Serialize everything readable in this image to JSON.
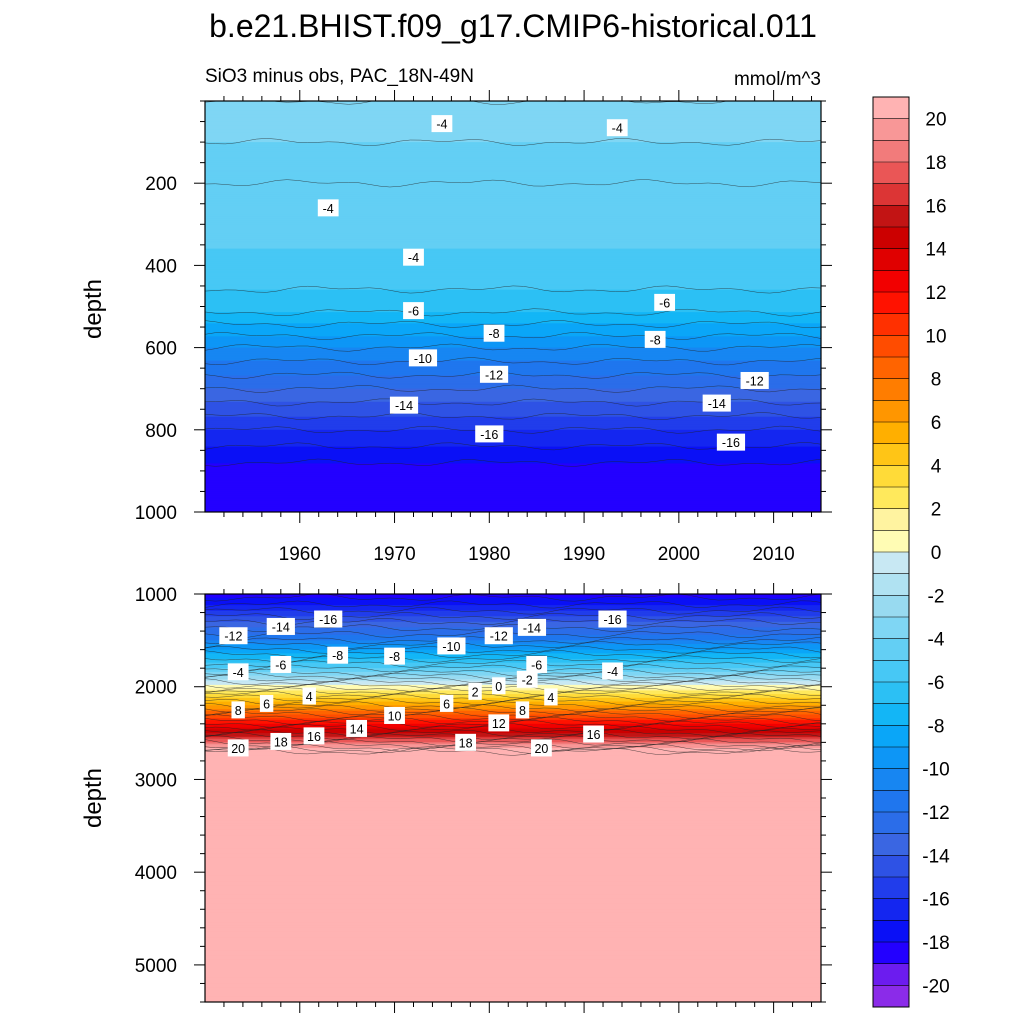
{
  "figure_title": "b.e21.BHIST.f09_g17.CMIP6-historical.011",
  "panel_left_title": "SiO3 minus obs, PAC_18N-49N",
  "panel_right_title": "mmol/m^3",
  "chart_data": [
    {
      "type": "heatmap",
      "panel": "upper",
      "ylabel": "depth",
      "xlim": [
        1950,
        2015
      ],
      "ylim": [
        0,
        1000
      ],
      "y_reversed": true,
      "x_ticks": [
        1960,
        1970,
        1980,
        1990,
        2000,
        2010
      ],
      "y_ticks": [
        200,
        400,
        600,
        800,
        1000
      ],
      "contour_interval": 1,
      "profile": [
        {
          "depth": 0,
          "value": -3
        },
        {
          "depth": 100,
          "value": -4
        },
        {
          "depth": 200,
          "value": -5
        },
        {
          "depth": 300,
          "value": -4.6
        },
        {
          "depth": 400,
          "value": -5.3
        },
        {
          "depth": 500,
          "value": -6.5
        },
        {
          "depth": 600,
          "value": -10
        },
        {
          "depth": 700,
          "value": -13
        },
        {
          "depth": 800,
          "value": -16
        },
        {
          "depth": 880,
          "value": -18
        },
        {
          "depth": 1000,
          "value": -18.6
        }
      ],
      "contour_labels": [
        {
          "x": 1975,
          "depth": 55,
          "text": "-4"
        },
        {
          "x": 1993.5,
          "depth": 65,
          "text": "-4"
        },
        {
          "x": 1963,
          "depth": 260,
          "text": "-4"
        },
        {
          "x": 1972,
          "depth": 380,
          "text": "-4"
        },
        {
          "x": 1972,
          "depth": 510,
          "text": "-6"
        },
        {
          "x": 1998.5,
          "depth": 490,
          "text": "-6"
        },
        {
          "x": 1980.5,
          "depth": 565,
          "text": "-8"
        },
        {
          "x": 1997.5,
          "depth": 580,
          "text": "-8"
        },
        {
          "x": 1973,
          "depth": 625,
          "text": "-10"
        },
        {
          "x": 1980.5,
          "depth": 665,
          "text": "-12"
        },
        {
          "x": 2008,
          "depth": 680,
          "text": "-12"
        },
        {
          "x": 1971,
          "depth": 740,
          "text": "-14"
        },
        {
          "x": 2004,
          "depth": 735,
          "text": "-14"
        },
        {
          "x": 1980,
          "depth": 810,
          "text": "-16"
        },
        {
          "x": 2005.5,
          "depth": 830,
          "text": "-16"
        }
      ]
    },
    {
      "type": "heatmap",
      "panel": "lower",
      "ylabel": "depth",
      "xlim": [
        1950,
        2015
      ],
      "ylim": [
        1000,
        5400
      ],
      "y_reversed": true,
      "y_ticks": [
        1000,
        2000,
        3000,
        4000,
        5000
      ],
      "contour_interval": 1,
      "profile": [
        {
          "depth": 1000,
          "value": -18.5
        },
        {
          "depth": 1150,
          "value": -16.5
        },
        {
          "depth": 1300,
          "value": -14
        },
        {
          "depth": 1500,
          "value": -11
        },
        {
          "depth": 1700,
          "value": -7
        },
        {
          "depth": 1850,
          "value": -4
        },
        {
          "depth": 1950,
          "value": -1
        },
        {
          "depth": 2000,
          "value": 0.5
        },
        {
          "depth": 2100,
          "value": 3.5
        },
        {
          "depth": 2200,
          "value": 6
        },
        {
          "depth": 2300,
          "value": 9
        },
        {
          "depth": 2400,
          "value": 12
        },
        {
          "depth": 2500,
          "value": 15
        },
        {
          "depth": 2600,
          "value": 18
        },
        {
          "depth": 2660,
          "value": 20
        },
        {
          "depth": 2700,
          "value": 22
        },
        {
          "depth": 5400,
          "value": 22
        }
      ],
      "contour_labels": [
        {
          "x": 1953,
          "depth": 1450,
          "text": "-12"
        },
        {
          "x": 1958,
          "depth": 1350,
          "text": "-14"
        },
        {
          "x": 1963,
          "depth": 1270,
          "text": "-16"
        },
        {
          "x": 1976,
          "depth": 1560,
          "text": "-10"
        },
        {
          "x": 1981,
          "depth": 1450,
          "text": "-12"
        },
        {
          "x": 1984.5,
          "depth": 1360,
          "text": "-14"
        },
        {
          "x": 1993,
          "depth": 1270,
          "text": "-16"
        },
        {
          "x": 1953.5,
          "depth": 1840,
          "text": "-4"
        },
        {
          "x": 1958,
          "depth": 1760,
          "text": "-6"
        },
        {
          "x": 1964,
          "depth": 1660,
          "text": "-8"
        },
        {
          "x": 1970,
          "depth": 1670,
          "text": "-8"
        },
        {
          "x": 1985,
          "depth": 1760,
          "text": "-6"
        },
        {
          "x": 1993,
          "depth": 1830,
          "text": "-4"
        },
        {
          "x": 1978.5,
          "depth": 2050,
          "text": "2"
        },
        {
          "x": 1981,
          "depth": 1990,
          "text": "0"
        },
        {
          "x": 1984,
          "depth": 1920,
          "text": "-2"
        },
        {
          "x": 1953.5,
          "depth": 2250,
          "text": "8"
        },
        {
          "x": 1956.5,
          "depth": 2180,
          "text": "6"
        },
        {
          "x": 1961,
          "depth": 2100,
          "text": "4"
        },
        {
          "x": 1975.5,
          "depth": 2180,
          "text": "6"
        },
        {
          "x": 1986.5,
          "depth": 2110,
          "text": "4"
        },
        {
          "x": 1983.5,
          "depth": 2250,
          "text": "8"
        },
        {
          "x": 1970,
          "depth": 2310,
          "text": "10"
        },
        {
          "x": 1981,
          "depth": 2390,
          "text": "12"
        },
        {
          "x": 1966,
          "depth": 2450,
          "text": "14"
        },
        {
          "x": 1961.5,
          "depth": 2530,
          "text": "16"
        },
        {
          "x": 1953.5,
          "depth": 2660,
          "text": "20"
        },
        {
          "x": 1958,
          "depth": 2590,
          "text": "18"
        },
        {
          "x": 1977.5,
          "depth": 2600,
          "text": "18"
        },
        {
          "x": 1985.5,
          "depth": 2660,
          "text": "20"
        },
        {
          "x": 1991,
          "depth": 2510,
          "text": "16"
        }
      ]
    }
  ],
  "colorbar": {
    "min": -21,
    "max": 21,
    "tick_labels": [
      "20",
      "18",
      "16",
      "14",
      "12",
      "10",
      "8",
      "6",
      "4",
      "2",
      "0",
      "-2",
      "-4",
      "-6",
      "-8",
      "-10",
      "-12",
      "-14",
      "-16",
      "-18",
      "-20"
    ],
    "colors": [
      "#8b2be9",
      "#6c1cef",
      "#2300ff",
      "#0a10f6",
      "#1426f0",
      "#213deb",
      "#2e52e5",
      "#3a66e2",
      "#2b6de9",
      "#1f76ee",
      "#1786f2",
      "#0d96f6",
      "#0aa6f8",
      "#13b6f6",
      "#2cc0f4",
      "#47c8f5",
      "#63cff4",
      "#7fd6f4",
      "#98daf0",
      "#b0e2f2",
      "#c8e8f3",
      "#fffcb4",
      "#fff3a0",
      "#ffe95c",
      "#ffdb38",
      "#ffc516",
      "#ffaf00",
      "#ff9600",
      "#ff7d00",
      "#ff6400",
      "#ff4c00",
      "#ff3000",
      "#ff1200",
      "#f20000",
      "#e00000",
      "#cc0000",
      "#c21414",
      "#dc3535",
      "#ea5656",
      "#f27b7b",
      "#f89797",
      "#ffb3b3"
    ]
  }
}
